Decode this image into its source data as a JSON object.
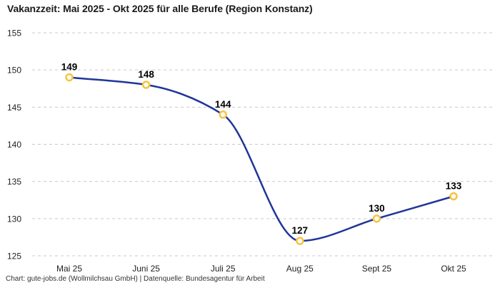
{
  "title": "Vakanzzeit: Mai 2025 - Okt 2025 für alle Berufe (Region Konstanz)",
  "footer": "Chart: gute-jobs.de (Wollmilchsau GmbH) | Datenquelle: Bundesagentur für Arbeit",
  "chart_data": {
    "type": "line",
    "title": "Vakanzzeit: Mai 2025 - Okt 2025 für alle Berufe (Region Konstanz)",
    "categories": [
      "Mai 25",
      "Juni 25",
      "Juli 25",
      "Aug 25",
      "Sept 25",
      "Okt 25"
    ],
    "values": [
      149,
      148,
      144,
      127,
      130,
      133
    ],
    "xlabel": "",
    "ylabel": "",
    "ylim": [
      125,
      155
    ],
    "yticks": [
      125,
      130,
      135,
      140,
      145,
      150,
      155
    ],
    "grid": "horizontal-dashed",
    "curve": "monotone",
    "legend": "none",
    "marker_style": "hollow-circle",
    "colors": {
      "line": "#1f3698",
      "marker_stroke": "#f7c440",
      "marker_fill": "#ffffff",
      "grid": "#c9c9c9",
      "title": "#1a1a1a",
      "data_label": "#000000",
      "tick": "#222222",
      "footer": "#333333",
      "background": "#ffffff"
    }
  }
}
